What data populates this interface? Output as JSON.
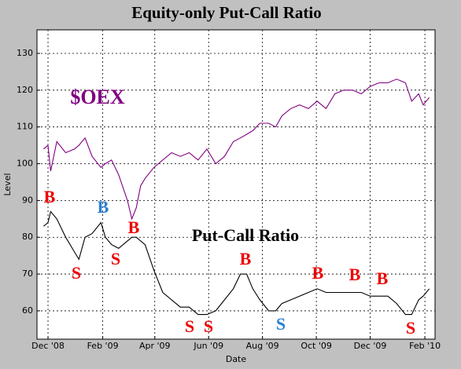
{
  "chart_data": {
    "type": "line",
    "title": "Equity-only Put-Call Ratio",
    "x_label": "Date",
    "y_label": "Level",
    "x": [
      -5,
      0,
      3,
      10,
      20,
      30,
      35,
      42,
      50,
      60,
      65,
      72,
      80,
      90,
      95,
      100,
      105,
      110,
      120,
      130,
      140,
      150,
      160,
      170,
      180,
      190,
      200,
      210,
      218,
      225,
      232,
      240,
      250,
      258,
      265,
      275,
      285,
      295,
      305,
      315,
      325,
      335,
      345,
      355,
      365,
      375,
      385,
      395,
      405,
      412,
      420,
      425,
      432
    ],
    "series": [
      {
        "name": "$OEX",
        "color": "#800080",
        "values": [
          104,
          105,
          98,
          106,
          103,
          104,
          105,
          107,
          102,
          99,
          100,
          101,
          97,
          90,
          85,
          88,
          94,
          96,
          99,
          101,
          103,
          102,
          103,
          101,
          104,
          100,
          102,
          106,
          107,
          108,
          109,
          111,
          111,
          110,
          113,
          115,
          116,
          115,
          117,
          115,
          119,
          120,
          120,
          119,
          121,
          122,
          122,
          123,
          122,
          117,
          119,
          116,
          118
        ]
      },
      {
        "name": "Put-Call Ratio",
        "color": "#000000",
        "values": [
          83,
          84,
          87,
          85,
          80,
          76,
          74,
          80,
          81,
          84,
          80,
          78,
          77,
          79,
          80,
          80,
          79,
          78,
          71,
          65,
          63,
          61,
          61,
          59,
          59,
          60,
          63,
          66,
          70,
          70,
          66,
          63,
          60,
          60,
          62,
          63,
          64,
          65,
          66,
          65,
          65,
          65,
          65,
          65,
          64,
          64,
          64,
          62,
          59,
          59,
          63,
          64,
          66
        ]
      }
    ],
    "annotations": [
      {
        "text": "B",
        "color": "#ee0000"
      },
      {
        "text": "B",
        "color": "#2a7fd4"
      },
      {
        "text": "B",
        "color": "#ee0000"
      },
      {
        "text": "S",
        "color": "#ee0000"
      },
      {
        "text": "S",
        "color": "#ee0000"
      },
      {
        "text": "S",
        "color": "#ee0000"
      },
      {
        "text": "S",
        "color": "#ee0000"
      },
      {
        "text": "B",
        "color": "#ee0000"
      },
      {
        "text": "S",
        "color": "#2a7fd4"
      },
      {
        "text": "B",
        "color": "#ee0000"
      },
      {
        "text": "B",
        "color": "#ee0000"
      },
      {
        "text": "B",
        "color": "#ee0000"
      },
      {
        "text": "S",
        "color": "#ee0000"
      }
    ],
    "xlim": [
      -12.5,
      438.5
    ],
    "xticks": [
      {
        "value": 0,
        "label": "Dec '08"
      },
      {
        "value": 62,
        "label": "Feb '09"
      },
      {
        "value": 121,
        "label": "Apr '09"
      },
      {
        "value": 182,
        "label": "Jun '09"
      },
      {
        "value": 243,
        "label": "Aug '09"
      },
      {
        "value": 304,
        "label": "Oct '09"
      },
      {
        "value": 365,
        "label": "Dec '09"
      },
      {
        "value": 427,
        "label": "Feb '10"
      }
    ],
    "ylim": [
      52.3,
      136.4
    ],
    "yticks": [
      60,
      70,
      80,
      90,
      100,
      110,
      120,
      130
    ],
    "grid": true
  }
}
